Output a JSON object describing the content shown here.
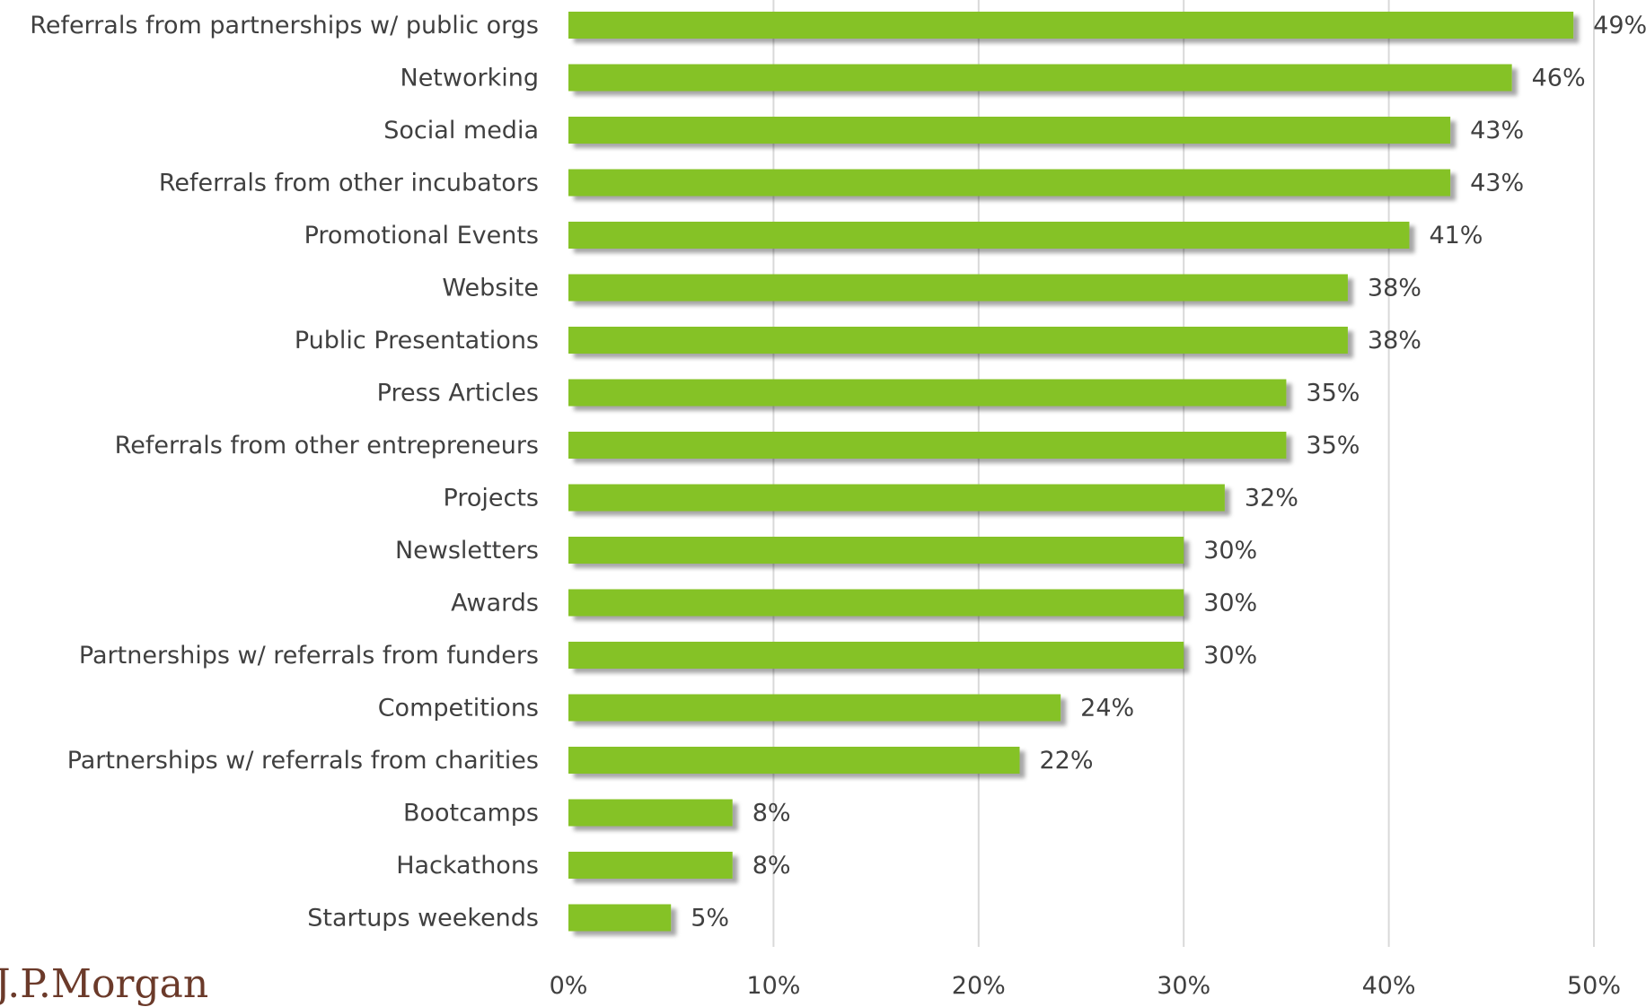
{
  "chart_data": {
    "type": "bar",
    "orientation": "horizontal",
    "categories": [
      "Referrals from partnerships w/ public orgs",
      "Networking",
      "Social media",
      "Referrals from other incubators",
      "Promotional Events",
      "Website",
      "Public Presentations",
      "Press Articles",
      "Referrals from other entrepreneurs",
      "Projects",
      "Newsletters",
      "Awards",
      "Partnerships w/ referrals from funders",
      "Competitions",
      "Partnerships w/ referrals from charities",
      "Bootcamps",
      "Hackathons",
      "Startups weekends"
    ],
    "values": [
      49,
      46,
      43,
      43,
      41,
      38,
      38,
      35,
      35,
      32,
      30,
      30,
      30,
      24,
      22,
      8,
      8,
      5
    ],
    "value_labels": [
      "49%",
      "46%",
      "43%",
      "43%",
      "41%",
      "38%",
      "38%",
      "35%",
      "35%",
      "32%",
      "30%",
      "30%",
      "30%",
      "24%",
      "22%",
      "8%",
      "8%",
      "5%"
    ],
    "xticks": [
      0,
      10,
      20,
      30,
      40,
      50
    ],
    "xtick_labels": [
      "0%",
      "10%",
      "20%",
      "30%",
      "40%",
      "50%"
    ],
    "xlim": [
      0,
      50
    ],
    "grid": true,
    "bar_color": "#85c226",
    "gridline_color": "#d9d9d9",
    "title": "",
    "xlabel": "",
    "ylabel": ""
  },
  "footer": {
    "logo_text": "J.P.Morgan"
  }
}
